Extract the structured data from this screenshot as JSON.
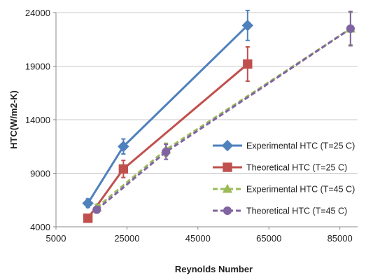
{
  "chart_data": {
    "type": "line",
    "title": "",
    "xlabel": "Reynolds Number",
    "ylabel": "HTC(W/m2-K)",
    "xlim": [
      5000,
      90000
    ],
    "ylim": [
      4000,
      24000
    ],
    "xticks": [
      5000,
      25000,
      45000,
      65000,
      85000
    ],
    "yticks": [
      4000,
      9000,
      14000,
      19000,
      24000
    ],
    "xtick_labels": [
      "5000",
      "25000",
      "45000",
      "65000",
      "85000"
    ],
    "ytick_labels": [
      "4000",
      "9000",
      "14000",
      "19000",
      "24000"
    ],
    "grid": "horizontal",
    "legend_position": "right",
    "series": [
      {
        "name": "Experimental HTC (T=25 C)",
        "color": "#4f81bd",
        "dash": "solid",
        "marker": "diamond",
        "x": [
          14000,
          24000,
          59000
        ],
        "y": [
          6200,
          11500,
          22800
        ],
        "yerr": [
          400,
          700,
          1400
        ]
      },
      {
        "name": "Theoretical HTC (T=25 C)",
        "color": "#c0504d",
        "dash": "solid",
        "marker": "square",
        "x": [
          14000,
          24000,
          59000
        ],
        "y": [
          4800,
          9400,
          19200
        ],
        "yerr": [
          300,
          800,
          1600
        ]
      },
      {
        "name": "Experimental HTC (T=45 C)",
        "color": "#9bbb59",
        "dash": "dashed",
        "marker": "triangle",
        "x": [
          16500,
          36000,
          88000
        ],
        "y": [
          5800,
          11200,
          22500
        ],
        "yerr": [
          300,
          600,
          1500
        ]
      },
      {
        "name": "Theoretical HTC (T=45 C)",
        "color": "#8064a2",
        "dash": "dashed",
        "marker": "circle",
        "x": [
          16500,
          36000,
          88000
        ],
        "y": [
          5600,
          11000,
          22500
        ],
        "yerr": [
          300,
          700,
          1600
        ]
      }
    ]
  }
}
